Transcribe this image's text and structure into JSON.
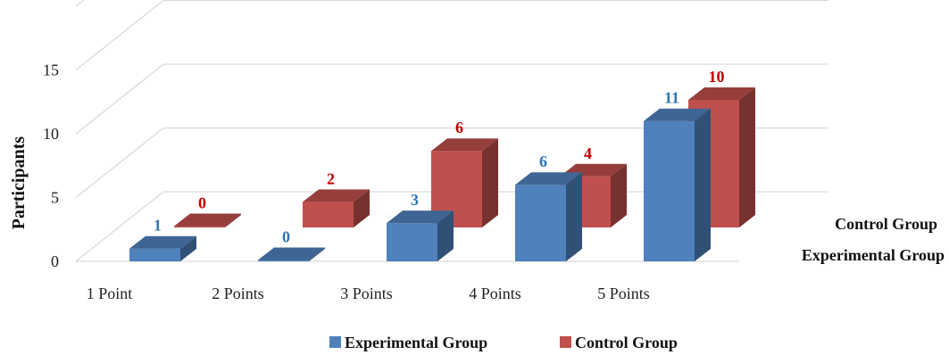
{
  "chart_data": {
    "type": "bar",
    "style": "3d-clustered-depth",
    "categories": [
      "1 Point",
      "2 Points",
      "3 Points",
      "4 Points",
      "5 Points"
    ],
    "series": [
      {
        "name": "Experimental Group",
        "values": [
          1,
          0,
          3,
          6,
          11
        ],
        "color": "#4f81bd",
        "label_color": "#2e75b6"
      },
      {
        "name": "Control Group",
        "values": [
          0,
          2,
          6,
          4,
          10
        ],
        "color": "#c0504d",
        "label_color": "#c00000"
      }
    ],
    "ylabel": "Participants",
    "xlabel": "",
    "yticks": [
      0,
      5,
      10,
      15
    ],
    "ylim": [
      0,
      20
    ],
    "grid": true,
    "legend": "bottom",
    "depth_labels": [
      "Control Group",
      "Experimental Group"
    ]
  }
}
